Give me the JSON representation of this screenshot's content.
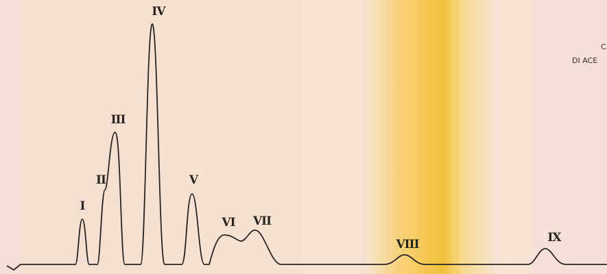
{
  "peaks": [
    {
      "label": "I"
    },
    {
      "label": "II"
    },
    {
      "label": "III"
    },
    {
      "label": "IV"
    },
    {
      "label": "V"
    },
    {
      "label": "VI"
    },
    {
      "label": "VII"
    },
    {
      "label": "VIII"
    },
    {
      "label": "IX"
    }
  ],
  "side_text": {
    "line1": "C",
    "line2": "DI ACE"
  }
}
